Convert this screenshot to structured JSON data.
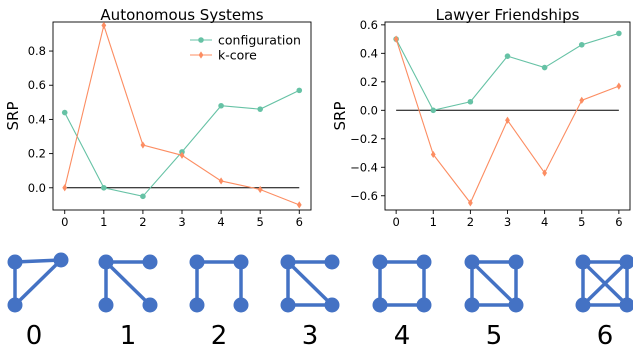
{
  "chart_data": [
    {
      "type": "line",
      "title": "Autonomous Systems",
      "ylabel": "SRP",
      "xlabel": "",
      "x": [
        0,
        1,
        2,
        3,
        4,
        5,
        6
      ],
      "xlim": [
        -0.3,
        6.3
      ],
      "ylim": [
        -0.13,
        0.97
      ],
      "yticks": [
        "0.0",
        "0.2",
        "0.4",
        "0.6",
        "0.8"
      ],
      "ytick_values": [
        0.0,
        0.2,
        0.4,
        0.6,
        0.8
      ],
      "reference_line": 0,
      "legend_position": "top-right",
      "series": [
        {
          "name": "configuration",
          "color": "#66c2a5",
          "marker": "circle",
          "values": [
            0.44,
            0.0,
            -0.05,
            0.21,
            0.48,
            0.46,
            0.57
          ]
        },
        {
          "name": "k-core",
          "color": "#fc8d62",
          "marker": "diamond",
          "values": [
            0.0,
            0.95,
            0.25,
            0.19,
            0.04,
            -0.01,
            -0.1
          ]
        }
      ]
    },
    {
      "type": "line",
      "title": "Lawyer Friendships",
      "ylabel": "SRP",
      "xlabel": "",
      "x": [
        0,
        1,
        2,
        3,
        4,
        5,
        6
      ],
      "xlim": [
        -0.3,
        6.3
      ],
      "ylim": [
        -0.7,
        0.62
      ],
      "yticks": [
        "−0.6",
        "−0.4",
        "−0.2",
        "0.0",
        "0.2",
        "0.4",
        "0.6"
      ],
      "ytick_values": [
        -0.6,
        -0.4,
        -0.2,
        0.0,
        0.2,
        0.4,
        0.6
      ],
      "reference_line": 0,
      "series": [
        {
          "name": "configuration",
          "color": "#66c2a5",
          "marker": "circle",
          "values": [
            0.5,
            0.0,
            0.06,
            0.38,
            0.3,
            0.46,
            0.54
          ]
        },
        {
          "name": "k-core",
          "color": "#fc8d62",
          "marker": "diamond",
          "values": [
            0.5,
            -0.31,
            -0.65,
            -0.07,
            -0.44,
            0.07,
            0.17
          ]
        }
      ]
    }
  ],
  "graphlets": {
    "labels": [
      "0",
      "1",
      "2",
      "3",
      "4",
      "5",
      "6"
    ],
    "node_color": "#4472c4"
  }
}
